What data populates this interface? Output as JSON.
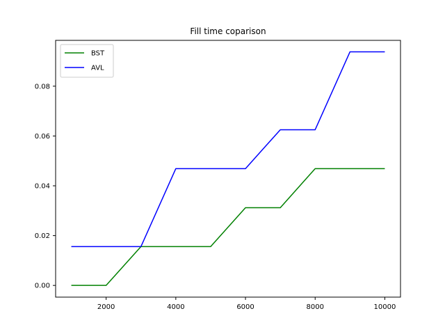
{
  "chart_data": {
    "type": "line",
    "title": "Fill time coparison",
    "xlabel": "",
    "ylabel": "",
    "xlim": [
      550,
      10450
    ],
    "ylim": [
      -0.0047,
      0.0984
    ],
    "xticks": [
      2000,
      4000,
      6000,
      8000,
      10000
    ],
    "yticks": [
      0.0,
      0.02,
      0.04,
      0.06,
      0.08
    ],
    "ytick_labels": [
      "0.00",
      "0.02",
      "0.04",
      "0.06",
      "0.08"
    ],
    "grid": false,
    "legend_position": "top-left",
    "x": [
      1000,
      2000,
      3000,
      4000,
      5000,
      6000,
      7000,
      8000,
      9000,
      10000
    ],
    "series": [
      {
        "name": "BST",
        "color": "#008000",
        "values": [
          0.0,
          0.0,
          0.0156,
          0.0156,
          0.0156,
          0.0312,
          0.0312,
          0.0469,
          0.0469,
          0.0469
        ]
      },
      {
        "name": "AVL",
        "color": "#0000ff",
        "values": [
          0.0156,
          0.0156,
          0.0156,
          0.0469,
          0.0469,
          0.0469,
          0.0625,
          0.0625,
          0.0938,
          0.0938
        ]
      }
    ]
  }
}
